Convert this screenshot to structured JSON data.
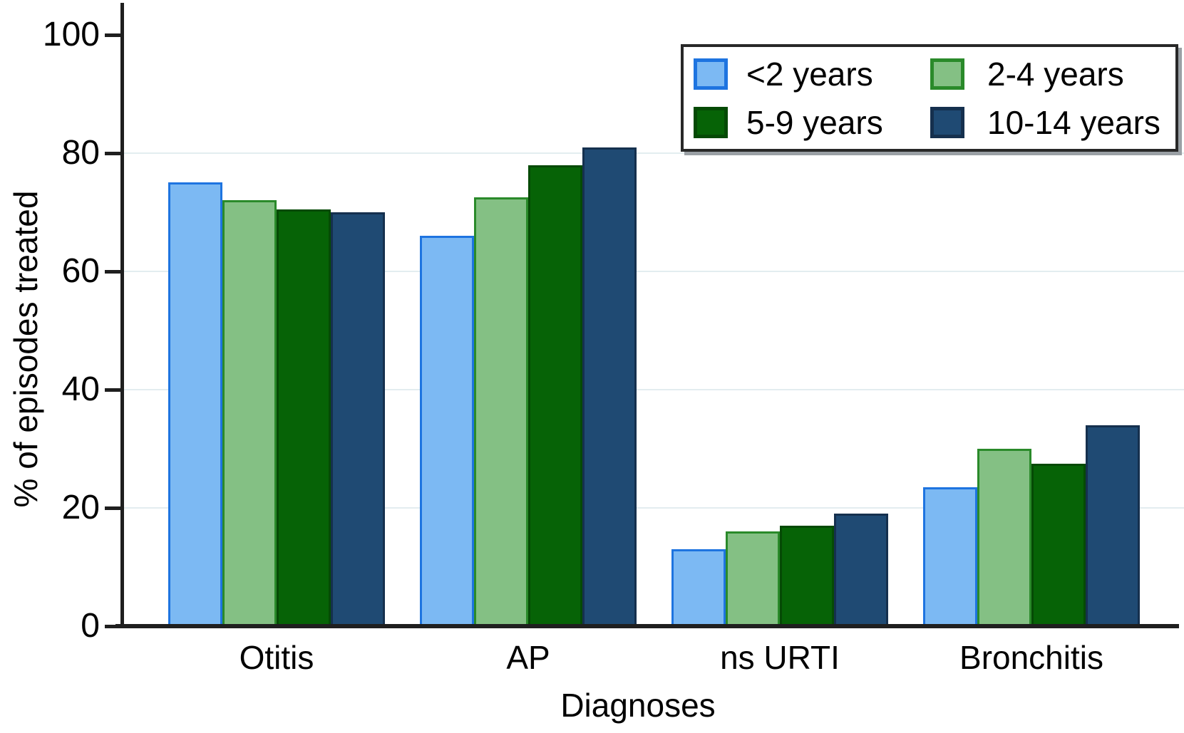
{
  "figure": {
    "background": "#ffffff",
    "axis_color": "#1f1f1f",
    "grid_color": "#e3edf0",
    "legend_border_color": "#282828"
  },
  "chart_data": {
    "type": "bar",
    "title": "",
    "xlabel": "Diagnoses",
    "ylabel": "% of episodes treated",
    "categories": [
      "Otitis",
      "AP",
      "ns URTI",
      "Bronchitis"
    ],
    "series": [
      {
        "name": "<2 years",
        "fill": "#7cb9f3",
        "border": "#1e74e0",
        "values": [
          75,
          66,
          13,
          23.5
        ]
      },
      {
        "name": "2-4 years",
        "fill": "#84c084",
        "border": "#2a8a2a",
        "values": [
          72,
          72.5,
          16,
          30
        ]
      },
      {
        "name": "5-9 years",
        "fill": "#066306",
        "border": "#054a05",
        "values": [
          70.5,
          78,
          17,
          27.5
        ]
      },
      {
        "name": "10-14 years",
        "fill": "#1f4a73",
        "border": "#15304e",
        "values": [
          70,
          81,
          19,
          34
        ]
      }
    ],
    "ylim": [
      0,
      100
    ],
    "yticks": [
      0,
      20,
      40,
      60,
      80,
      100
    ],
    "gridlines": [
      20,
      40,
      60,
      80
    ],
    "grid_on": true,
    "legend_position": "top-right",
    "legend_rows": 2,
    "legend_cols": 2
  }
}
